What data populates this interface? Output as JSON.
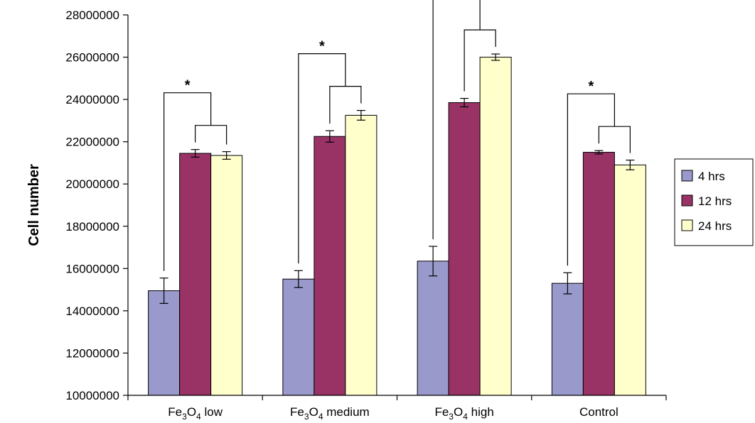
{
  "chart_data": {
    "type": "bar",
    "title": "",
    "xlabel": "",
    "ylabel": "Cell number",
    "ylim": [
      10000000,
      28000000
    ],
    "yticks": [
      10000000,
      12000000,
      14000000,
      16000000,
      18000000,
      20000000,
      22000000,
      24000000,
      26000000,
      28000000
    ],
    "grid": false,
    "legend_position": "right",
    "categories": [
      {
        "pre": "Fe",
        "sub1": "3",
        "mid": "O",
        "sub2": "4",
        "post": " low"
      },
      {
        "pre": "Fe",
        "sub1": "3",
        "mid": "O",
        "sub2": "4",
        "post": " medium"
      },
      {
        "pre": "Fe",
        "sub1": "3",
        "mid": "O",
        "sub2": "4",
        "post": " high"
      },
      {
        "pre": "Control",
        "sub1": "",
        "mid": "",
        "sub2": "",
        "post": ""
      }
    ],
    "series": [
      {
        "name": "4 hrs",
        "color": "#9999cc",
        "values": [
          14950000,
          15500000,
          16350000,
          15300000
        ],
        "errors": [
          600000,
          400000,
          700000,
          500000
        ]
      },
      {
        "name": "12 hrs",
        "color": "#993366",
        "values": [
          21450000,
          22250000,
          23850000,
          21500000
        ],
        "errors": [
          180000,
          270000,
          200000,
          80000
        ]
      },
      {
        "name": "24 hrs",
        "color": "#ffffcc",
        "values": [
          21350000,
          23250000,
          26000000,
          20900000
        ],
        "errors": [
          180000,
          230000,
          150000,
          230000
        ]
      }
    ],
    "significance": [
      {
        "category": 0,
        "label": "*"
      },
      {
        "category": 1,
        "label": "*"
      },
      {
        "category": 2,
        "label": "*"
      },
      {
        "category": 3,
        "label": "*"
      }
    ]
  }
}
